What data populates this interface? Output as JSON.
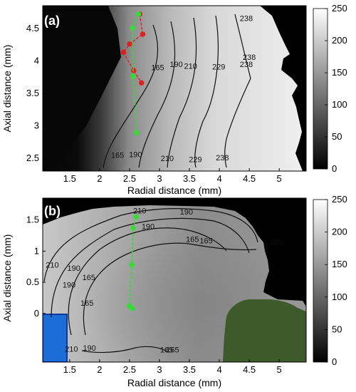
{
  "chart_data": [
    {
      "type": "heatmap",
      "panel_label": "(a)",
      "xlabel": "Radial distance (mm)",
      "ylabel": "Axial distance (mm)",
      "xlim": [
        1.05,
        5.45
      ],
      "ylim": [
        2.3,
        4.85
      ],
      "xticks": [
        "1.5",
        "2",
        "2.5",
        "3",
        "3.5",
        "4",
        "4.5",
        "5"
      ],
      "yticks": [
        "2.5",
        "3",
        "3.5",
        "4",
        "4.5"
      ],
      "colorbar": {
        "range": [
          0,
          250
        ],
        "ticks": [
          "0",
          "50",
          "100",
          "150",
          "200",
          "250"
        ]
      },
      "contour_labels": [
        {
          "text": "165",
          "x": 2.3,
          "y": 2.55
        },
        {
          "text": "190",
          "x": 2.6,
          "y": 2.56
        },
        {
          "text": "210",
          "x": 3.13,
          "y": 2.5
        },
        {
          "text": "229",
          "x": 3.6,
          "y": 2.48
        },
        {
          "text": "238",
          "x": 4.05,
          "y": 2.51
        },
        {
          "text": "165",
          "x": 2.97,
          "y": 3.9
        },
        {
          "text": "190",
          "x": 3.28,
          "y": 3.95
        },
        {
          "text": "210",
          "x": 3.52,
          "y": 3.92
        },
        {
          "text": "229",
          "x": 3.99,
          "y": 3.91
        },
        {
          "text": "238",
          "x": 4.5,
          "y": 4.06
        },
        {
          "text": "238",
          "x": 4.45,
          "y": 3.95
        },
        {
          "text": "238",
          "x": 4.45,
          "y": 4.66
        }
      ],
      "red_track": [
        {
          "x": 2.67,
          "y": 4.72
        },
        {
          "x": 2.72,
          "y": 4.41
        },
        {
          "x": 2.5,
          "y": 4.26
        },
        {
          "x": 2.4,
          "y": 4.13
        },
        {
          "x": 2.57,
          "y": 3.85
        },
        {
          "x": 2.7,
          "y": 3.66
        }
      ],
      "green_track": [
        {
          "x": 2.65,
          "y": 4.72
        },
        {
          "x": 2.55,
          "y": 4.51
        },
        {
          "x": 2.56,
          "y": 3.76
        },
        {
          "x": 2.62,
          "y": 2.89
        }
      ]
    },
    {
      "type": "heatmap",
      "panel_label": "(b)",
      "xlabel": "Radial distance (mm)",
      "ylabel": "Axial distance (mm)",
      "xlim": [
        1.05,
        5.45
      ],
      "ylim": [
        -0.78,
        1.85
      ],
      "xticks": [
        "1.5",
        "2",
        "2.5",
        "3",
        "3.5",
        "4",
        "4.5",
        "5"
      ],
      "yticks": [
        "0",
        "0.5",
        "1",
        "1.5"
      ],
      "colorbar": {
        "range": [
          0,
          250
        ],
        "ticks": [
          "0",
          "50",
          "100",
          "150",
          "200",
          "250"
        ]
      },
      "contour_labels": [
        {
          "text": "210",
          "x": 2.67,
          "y": 1.65
        },
        {
          "text": "190",
          "x": 2.81,
          "y": 1.4
        },
        {
          "text": "190",
          "x": 3.45,
          "y": 1.63
        },
        {
          "text": "165",
          "x": 3.55,
          "y": 1.19
        },
        {
          "text": "165",
          "x": 3.78,
          "y": 1.17
        },
        {
          "text": "210",
          "x": 1.21,
          "y": 0.78
        },
        {
          "text": "190",
          "x": 1.57,
          "y": 0.73
        },
        {
          "text": "190",
          "x": 1.49,
          "y": 0.46
        },
        {
          "text": "165",
          "x": 1.82,
          "y": 0.58
        },
        {
          "text": "165",
          "x": 1.79,
          "y": 0.17
        },
        {
          "text": "190",
          "x": 1.83,
          "y": -0.55
        },
        {
          "text": "210",
          "x": 1.53,
          "y": -0.57
        },
        {
          "text": "165",
          "x": 3.12,
          "y": -0.58
        },
        {
          "text": "165",
          "x": 3.22,
          "y": -0.58
        },
        {
          "text": "165",
          "x": 4.95,
          "y": 1.15
        }
      ],
      "green_track": [
        {
          "x": 2.61,
          "y": 1.55
        },
        {
          "x": 2.56,
          "y": 1.37
        },
        {
          "x": 2.54,
          "y": 0.78
        },
        {
          "x": 2.5,
          "y": 0.12
        },
        {
          "x": 2.55,
          "y": 0.08
        }
      ]
    }
  ]
}
